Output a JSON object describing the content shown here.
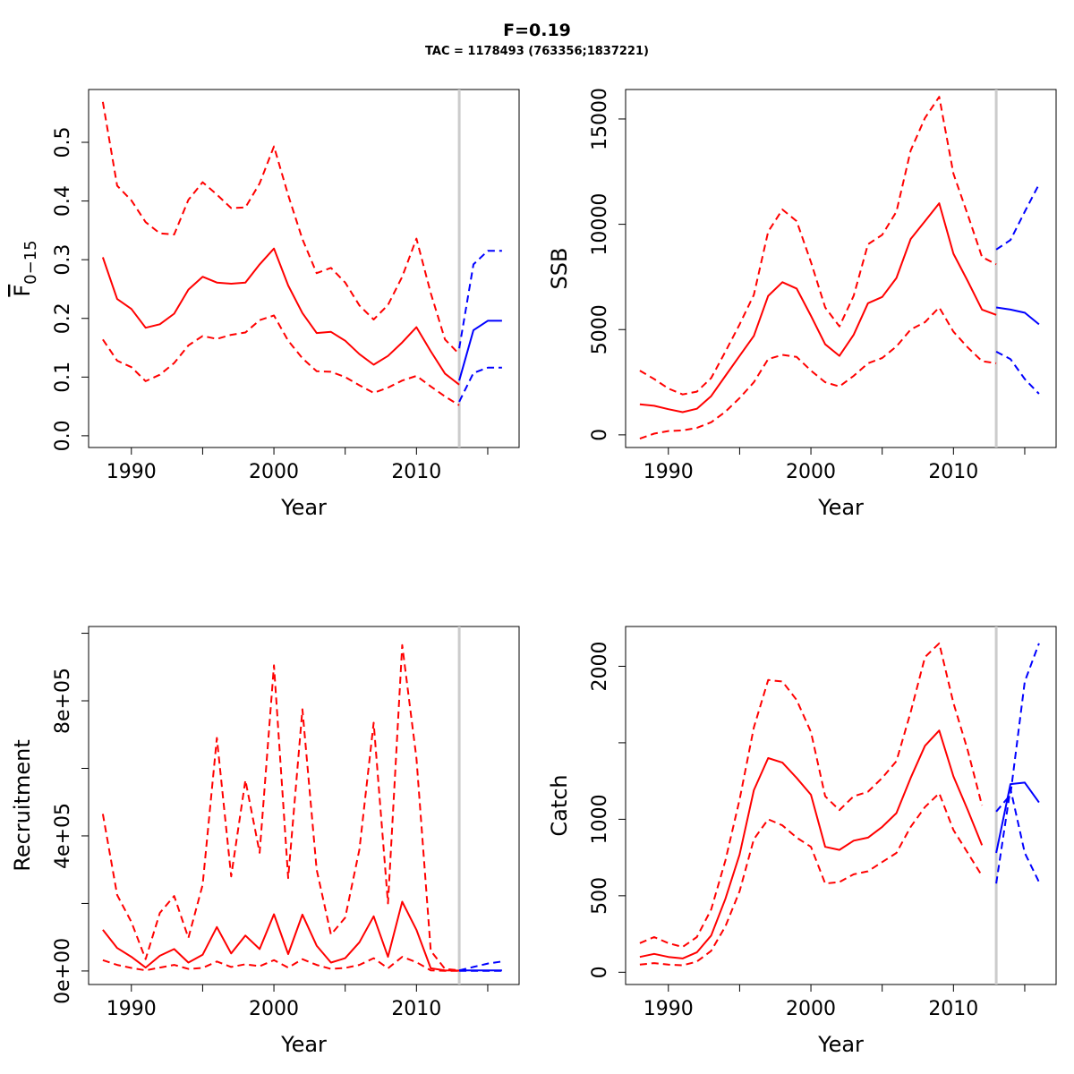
{
  "title": "F=0.19",
  "subtitle": "TAC = 1178493 (763356;1837221)",
  "colors": {
    "history": "#ff0000",
    "forecast": "#0000ff",
    "divider": "#cccccc",
    "axis": "#000000"
  },
  "chart_data": [
    {
      "type": "line",
      "panel": "top-left",
      "xlabel": "Year",
      "ylabel": "F̄0−15",
      "ylabel_main": "F",
      "ylabel_sub": "0−15",
      "xlim": [
        1987,
        2017.2
      ],
      "ylim": [
        -0.02,
        0.59
      ],
      "xticks": [
        1990,
        2000,
        2010
      ],
      "xticks_minor": [
        1995,
        2005,
        2015
      ],
      "yticks": [
        0.0,
        0.1,
        0.2,
        0.3,
        0.4,
        0.5
      ],
      "ytick_labels": [
        "0.0",
        "0.1",
        "0.2",
        "0.3",
        "0.4",
        "0.5"
      ],
      "divider_x": 2013,
      "series": [
        {
          "role": "estimate",
          "style": "solid",
          "color": "#ff0000",
          "x": [
            1988,
            1989,
            1990,
            1991,
            1992,
            1993,
            1994,
            1995,
            1996,
            1997,
            1998,
            1999,
            2000,
            2001,
            2002,
            2003,
            2004,
            2005,
            2006,
            2007,
            2008,
            2009,
            2010,
            2011,
            2012,
            2013
          ],
          "y": [
            0.304,
            0.233,
            0.216,
            0.184,
            0.19,
            0.208,
            0.249,
            0.271,
            0.261,
            0.259,
            0.261,
            0.292,
            0.319,
            0.256,
            0.209,
            0.175,
            0.177,
            0.162,
            0.139,
            0.121,
            0.136,
            0.159,
            0.185,
            0.144,
            0.106,
            0.087
          ]
        },
        {
          "role": "upper",
          "style": "dashed",
          "color": "#ff0000",
          "x": [
            1988,
            1989,
            1990,
            1991,
            1992,
            1993,
            1994,
            1995,
            1996,
            1997,
            1998,
            1999,
            2000,
            2001,
            2002,
            2003,
            2004,
            2005,
            2006,
            2007,
            2008,
            2009,
            2010,
            2011,
            2012,
            2013
          ],
          "y": [
            0.569,
            0.426,
            0.401,
            0.364,
            0.345,
            0.343,
            0.402,
            0.432,
            0.411,
            0.388,
            0.389,
            0.43,
            0.493,
            0.41,
            0.335,
            0.277,
            0.286,
            0.261,
            0.222,
            0.198,
            0.223,
            0.271,
            0.336,
            0.243,
            0.164,
            0.139
          ]
        },
        {
          "role": "lower",
          "style": "dashed",
          "color": "#ff0000",
          "x": [
            1988,
            1989,
            1990,
            1991,
            1992,
            1993,
            1994,
            1995,
            1996,
            1997,
            1998,
            1999,
            2000,
            2001,
            2002,
            2003,
            2004,
            2005,
            2006,
            2007,
            2008,
            2009,
            2010,
            2011,
            2012,
            2013
          ],
          "y": [
            0.164,
            0.128,
            0.117,
            0.093,
            0.104,
            0.124,
            0.154,
            0.17,
            0.165,
            0.172,
            0.176,
            0.197,
            0.205,
            0.162,
            0.132,
            0.11,
            0.109,
            0.1,
            0.086,
            0.073,
            0.082,
            0.094,
            0.102,
            0.084,
            0.067,
            0.052
          ]
        },
        {
          "role": "forecast",
          "style": "solid",
          "color": "#0000ff",
          "x": [
            2013,
            2014,
            2015,
            2016
          ],
          "y": [
            0.094,
            0.18,
            0.196,
            0.196
          ]
        },
        {
          "role": "forecast-upper",
          "style": "dashed",
          "color": "#0000ff",
          "x": [
            2013,
            2014,
            2015,
            2016
          ],
          "y": [
            0.149,
            0.292,
            0.315,
            0.315
          ]
        },
        {
          "role": "forecast-lower",
          "style": "dashed",
          "color": "#0000ff",
          "x": [
            2013,
            2014,
            2015,
            2016
          ],
          "y": [
            0.058,
            0.107,
            0.116,
            0.116
          ]
        }
      ]
    },
    {
      "type": "line",
      "panel": "top-right",
      "xlabel": "Year",
      "ylabel": "SSB",
      "xlim": [
        1987,
        2017.2
      ],
      "ylim": [
        -600,
        16400
      ],
      "xticks": [
        1990,
        2000,
        2010
      ],
      "xticks_minor": [
        1995,
        2005,
        2015
      ],
      "yticks": [
        0,
        5000,
        10000,
        15000
      ],
      "ytick_labels": [
        "0",
        "5000",
        "10000",
        "15000"
      ],
      "divider_x": 2013,
      "series": [
        {
          "role": "estimate",
          "style": "solid",
          "color": "#ff0000",
          "x": [
            1988,
            1989,
            1990,
            1991,
            1992,
            1993,
            1994,
            1995,
            1996,
            1997,
            1998,
            1999,
            2000,
            2001,
            2002,
            2003,
            2004,
            2005,
            2006,
            2007,
            2008,
            2009,
            2010,
            2011,
            2012,
            2013
          ],
          "y": [
            1450,
            1380,
            1220,
            1080,
            1240,
            1840,
            2800,
            3750,
            4700,
            6600,
            7250,
            6950,
            5650,
            4300,
            3750,
            4750,
            6250,
            6550,
            7450,
            9300,
            10150,
            11000,
            8600,
            7300,
            5950,
            5700
          ]
        },
        {
          "role": "upper",
          "style": "dashed",
          "color": "#ff0000",
          "x": [
            1988,
            1989,
            1990,
            1991,
            1992,
            1993,
            1994,
            1995,
            1996,
            1997,
            1998,
            1999,
            2000,
            2001,
            2002,
            2003,
            2004,
            2005,
            2006,
            2007,
            2008,
            2009,
            2010,
            2011,
            2012,
            2013
          ],
          "y": [
            3050,
            2650,
            2200,
            1920,
            2050,
            2700,
            3950,
            5250,
            6650,
            9650,
            10700,
            10150,
            8200,
            6050,
            5150,
            6600,
            9050,
            9500,
            10600,
            13500,
            15050,
            16050,
            12400,
            10450,
            8450,
            8100
          ]
        },
        {
          "role": "lower",
          "style": "dashed",
          "color": "#ff0000",
          "x": [
            1988,
            1989,
            1990,
            1991,
            1992,
            1993,
            1994,
            1995,
            1996,
            1997,
            1998,
            1999,
            2000,
            2001,
            2002,
            2003,
            2004,
            2005,
            2006,
            2007,
            2008,
            2009,
            2010,
            2011,
            2012,
            2013
          ],
          "y": [
            -180,
            60,
            180,
            210,
            330,
            600,
            1100,
            1750,
            2500,
            3600,
            3800,
            3700,
            3050,
            2500,
            2300,
            2800,
            3400,
            3650,
            4200,
            5000,
            5350,
            6050,
            4900,
            4150,
            3500,
            3400
          ]
        },
        {
          "role": "forecast",
          "style": "solid",
          "color": "#0000ff",
          "x": [
            2013,
            2014,
            2015,
            2016
          ],
          "y": [
            6050,
            5950,
            5800,
            5250
          ]
        },
        {
          "role": "forecast-upper",
          "style": "dashed",
          "color": "#0000ff",
          "x": [
            2013,
            2014,
            2015,
            2016
          ],
          "y": [
            8800,
            9250,
            10600,
            11900
          ]
        },
        {
          "role": "forecast-lower",
          "style": "dashed",
          "color": "#0000ff",
          "x": [
            2013,
            2014,
            2015,
            2016
          ],
          "y": [
            3950,
            3600,
            2650,
            1950
          ]
        }
      ]
    },
    {
      "type": "line",
      "panel": "bottom-left",
      "xlabel": "Year",
      "ylabel": "Recruitment",
      "xlim": [
        1987,
        2017.2
      ],
      "ylim": [
        -40000,
        1020000
      ],
      "xticks": [
        1990,
        2000,
        2010
      ],
      "xticks_minor": [
        1995,
        2005,
        2015
      ],
      "yticks": [
        0,
        200000,
        400000,
        600000,
        800000,
        1000000
      ],
      "ytick_labels": [
        "0e+00",
        "",
        "4e+05",
        "",
        "8e+05",
        ""
      ],
      "divider_x": 2013,
      "series": [
        {
          "role": "estimate",
          "style": "solid",
          "color": "#ff0000",
          "x": [
            1988,
            1989,
            1990,
            1991,
            1992,
            1993,
            1994,
            1995,
            1996,
            1997,
            1998,
            1999,
            2000,
            2001,
            2002,
            2003,
            2004,
            2005,
            2006,
            2007,
            2008,
            2009,
            2010,
            2011,
            2012,
            2013
          ],
          "y": [
            122000,
            68000,
            42000,
            10000,
            45000,
            65000,
            25000,
            48000,
            130000,
            52000,
            105000,
            65000,
            168000,
            50000,
            167000,
            75000,
            25000,
            38000,
            85000,
            162000,
            42000,
            205000,
            122000,
            8000,
            2000,
            1000
          ]
        },
        {
          "role": "upper",
          "style": "dashed",
          "color": "#ff0000",
          "x": [
            1988,
            1989,
            1990,
            1991,
            1992,
            1993,
            1994,
            1995,
            1996,
            1997,
            1998,
            1999,
            2000,
            2001,
            2002,
            2003,
            2004,
            2005,
            2006,
            2007,
            2008,
            2009,
            2010,
            2011,
            2012,
            2013
          ],
          "y": [
            465000,
            225000,
            145000,
            35000,
            172000,
            222000,
            98000,
            255000,
            690000,
            280000,
            565000,
            350000,
            905000,
            275000,
            775000,
            300000,
            108000,
            158000,
            360000,
            735000,
            200000,
            965000,
            630000,
            60000,
            6000,
            2000
          ]
        },
        {
          "role": "lower",
          "style": "dashed",
          "color": "#ff0000",
          "x": [
            1988,
            1989,
            1990,
            1991,
            1992,
            1993,
            1994,
            1995,
            1996,
            1997,
            1998,
            1999,
            2000,
            2001,
            2002,
            2003,
            2004,
            2005,
            2006,
            2007,
            2008,
            2009,
            2010,
            2011,
            2012,
            2013
          ],
          "y": [
            32000,
            18000,
            9000,
            2000,
            10000,
            18000,
            6000,
            9000,
            28000,
            12000,
            20000,
            14000,
            32000,
            10000,
            35000,
            18000,
            6000,
            9000,
            18000,
            38000,
            8000,
            42000,
            26000,
            2000,
            500,
            200
          ]
        },
        {
          "role": "forecast",
          "style": "solid",
          "color": "#0000ff",
          "x": [
            2013,
            2014,
            2015,
            2016
          ],
          "y": [
            1500,
            2000,
            2000,
            2000
          ]
        },
        {
          "role": "forecast-upper",
          "style": "dashed",
          "color": "#0000ff",
          "x": [
            2013,
            2014,
            2015,
            2016
          ],
          "y": [
            2000,
            12000,
            22000,
            28000
          ]
        },
        {
          "role": "forecast-lower",
          "style": "dashed",
          "color": "#0000ff",
          "x": [
            2013,
            2014,
            2015,
            2016
          ],
          "y": [
            500,
            500,
            500,
            500
          ]
        }
      ]
    },
    {
      "type": "line",
      "panel": "bottom-right",
      "xlabel": "Year",
      "ylabel": "Catch",
      "xlim": [
        1987,
        2017.2
      ],
      "ylim": [
        -80,
        2260
      ],
      "xticks": [
        1990,
        2000,
        2010
      ],
      "xticks_minor": [
        1995,
        2005,
        2015
      ],
      "yticks": [
        0,
        500,
        1000,
        1500,
        2000
      ],
      "ytick_labels": [
        "0",
        "500",
        "1000",
        "",
        "2000"
      ],
      "divider_x": 2013,
      "series": [
        {
          "role": "estimate",
          "style": "solid",
          "color": "#ff0000",
          "x": [
            1988,
            1989,
            1990,
            1991,
            1992,
            1993,
            1994,
            1995,
            1996,
            1997,
            1998,
            1999,
            2000,
            2001,
            2002,
            2003,
            2004,
            2005,
            2006,
            2007,
            2008,
            2009,
            2010,
            2011,
            2012
          ],
          "y": [
            100,
            120,
            100,
            90,
            130,
            240,
            480,
            770,
            1190,
            1400,
            1370,
            1270,
            1160,
            820,
            800,
            860,
            880,
            950,
            1040,
            1270,
            1480,
            1580,
            1280,
            1060,
            830
          ]
        },
        {
          "role": "upper",
          "style": "dashed",
          "color": "#ff0000",
          "x": [
            1988,
            1989,
            1990,
            1991,
            1992,
            1993,
            1994,
            1995,
            1996,
            1997,
            1998,
            1999,
            2000,
            2001,
            2002,
            2003,
            2004,
            2005,
            2006,
            2007,
            2008,
            2009,
            2010,
            2011,
            2012
          ],
          "y": [
            190,
            230,
            190,
            165,
            230,
            410,
            730,
            1130,
            1600,
            1910,
            1900,
            1780,
            1570,
            1150,
            1060,
            1150,
            1180,
            1270,
            1380,
            1700,
            2060,
            2150,
            1760,
            1450,
            1090
          ]
        },
        {
          "role": "lower",
          "style": "dashed",
          "color": "#ff0000",
          "x": [
            1988,
            1989,
            1990,
            1991,
            1992,
            1993,
            1994,
            1995,
            1996,
            1997,
            1998,
            1999,
            2000,
            2001,
            2002,
            2003,
            2004,
            2005,
            2006,
            2007,
            2008,
            2009,
            2010,
            2011,
            2012
          ],
          "y": [
            50,
            60,
            50,
            45,
            70,
            140,
            300,
            530,
            870,
            1000,
            960,
            880,
            820,
            580,
            590,
            640,
            660,
            720,
            780,
            950,
            1080,
            1170,
            930,
            780,
            630
          ]
        },
        {
          "role": "forecast",
          "style": "solid",
          "color": "#0000ff",
          "x": [
            2013,
            2014,
            2015,
            2016
          ],
          "y": [
            780,
            1230,
            1240,
            1110
          ]
        },
        {
          "role": "forecast-upper",
          "style": "dashed",
          "color": "#0000ff",
          "x": [
            2013,
            2014,
            2015,
            2016
          ],
          "y": [
            1050,
            1160,
            1900,
            2150
          ]
        },
        {
          "role": "forecast-lower",
          "style": "dashed",
          "color": "#0000ff",
          "x": [
            2013,
            2014,
            2015,
            2016
          ],
          "y": [
            580,
            1200,
            780,
            590
          ]
        }
      ]
    }
  ]
}
